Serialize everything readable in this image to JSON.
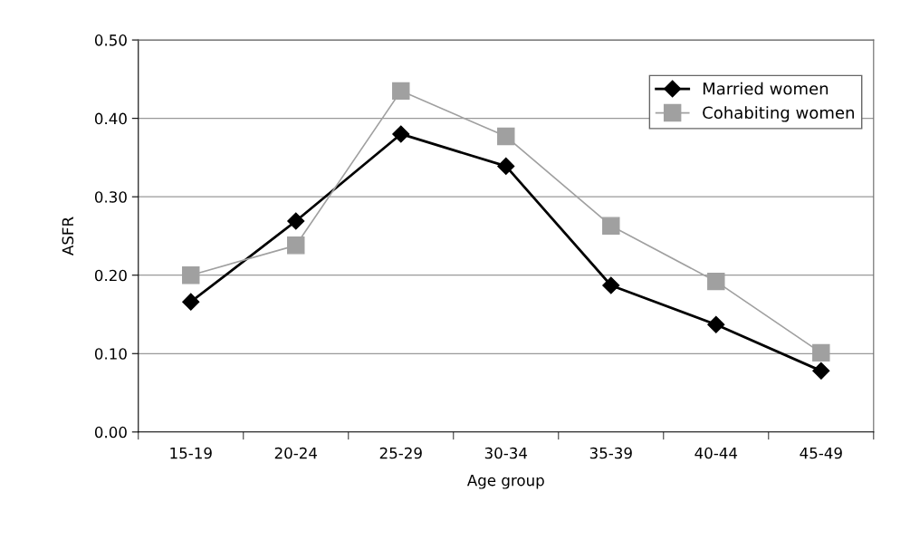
{
  "chart_data": {
    "type": "line",
    "xlabel": "Age group",
    "ylabel": "ASFR",
    "categories": [
      "15-19",
      "20-24",
      "25-29",
      "30-34",
      "35-39",
      "40-44",
      "45-49"
    ],
    "series": [
      {
        "name": "Married women",
        "color": "#000000",
        "marker": "diamond",
        "values": [
          0.166,
          0.269,
          0.38,
          0.339,
          0.187,
          0.137,
          0.078
        ]
      },
      {
        "name": "Cohabiting women",
        "color": "#a0a0a0",
        "marker": "square",
        "values": [
          0.2,
          0.238,
          0.435,
          0.377,
          0.263,
          0.192,
          0.101
        ]
      }
    ],
    "ylim": [
      0,
      0.5
    ],
    "yticks": [
      {
        "value": 0,
        "label": "0.00"
      },
      {
        "value": 0.1,
        "label": "0.10"
      },
      {
        "value": 0.2,
        "label": "0.20"
      },
      {
        "value": 0.3,
        "label": "0.30"
      },
      {
        "value": 0.4,
        "label": "0.40"
      },
      {
        "value": 0.5,
        "label": "0.50"
      }
    ],
    "grid": "y",
    "legend": "top right",
    "line_style": "solid"
  }
}
